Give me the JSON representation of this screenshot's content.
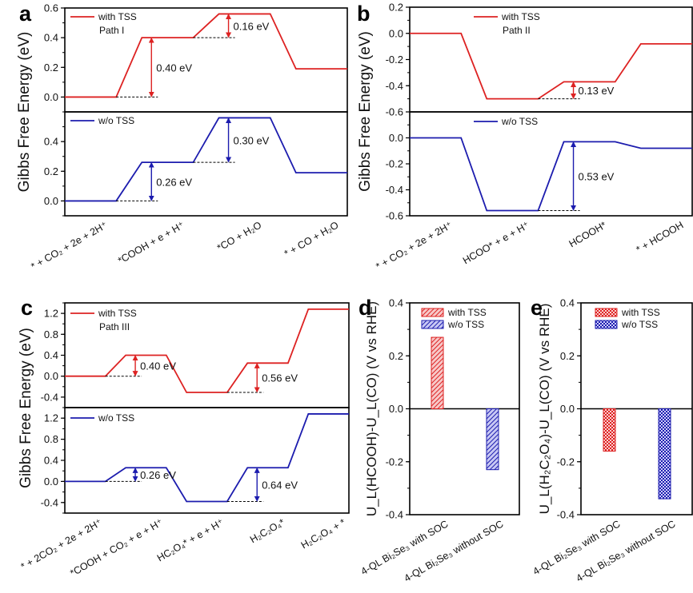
{
  "colors": {
    "with_tss": "#dd2222",
    "wo_tss": "#1c1cae"
  },
  "chart_data": [
    {
      "panel": "a",
      "type": "line",
      "ylabel": "Gibbs Free Energy (eV)",
      "categories": [
        "* + CO₂ + 2e + 2H⁺",
        "*COOH + e + H⁺",
        "*CO + H₂O",
        "* + CO + H₂O"
      ],
      "subplots": [
        {
          "legend": "with TSS",
          "path_label": "Path I",
          "series": "with_tss",
          "values": [
            0,
            0.4,
            0.56,
            0.19
          ],
          "ylim": [
            -0.1,
            0.6
          ],
          "yticks": [
            "0.0",
            "0.2",
            "0.4",
            "0.6"
          ],
          "annotations": [
            {
              "label": "0.40 eV",
              "step": 1
            },
            {
              "label": "0.16 eV",
              "step": 2
            }
          ]
        },
        {
          "legend": "w/o TSS",
          "series": "wo_tss",
          "values": [
            0,
            0.26,
            0.56,
            0.19
          ],
          "ylim": [
            -0.1,
            0.6
          ],
          "yticks": [
            "0.0",
            "0.2",
            "0.4"
          ],
          "annotations": [
            {
              "label": "0.26 eV",
              "step": 1
            },
            {
              "label": "0.30 eV",
              "step": 2
            }
          ]
        }
      ]
    },
    {
      "panel": "b",
      "type": "line",
      "ylabel": "Gibbs Free Energy (eV)",
      "categories": [
        "* + CO₂ + 2e + 2H⁺",
        "HCOO* + e + H⁺",
        "HCOOH*",
        "* + HCOOH"
      ],
      "subplots": [
        {
          "legend": "with TSS",
          "path_label": "Path II",
          "series": "with_tss",
          "values": [
            0,
            -0.5,
            -0.37,
            -0.08
          ],
          "ylim": [
            -0.6,
            0.2
          ],
          "yticks": [
            "-0.6",
            "-0.4",
            "-0.2",
            "0.0",
            "0.2"
          ],
          "annotations": [
            {
              "label": "0.13 eV",
              "step": 2
            }
          ]
        },
        {
          "legend": "w/o TSS",
          "series": "wo_tss",
          "values": [
            0,
            -0.56,
            -0.03,
            -0.08
          ],
          "ylim": [
            -0.6,
            0.2
          ],
          "yticks": [
            "-0.6",
            "-0.4",
            "-0.2",
            "0.0"
          ],
          "annotations": [
            {
              "label": "0.53 eV",
              "step": 2
            }
          ]
        }
      ]
    },
    {
      "panel": "c",
      "type": "line",
      "ylabel": "Gibbs Free Energy (eV)",
      "categories": [
        "* + 2CO₂ + 2e + 2H⁺",
        "*COOH + CO₂ + e + H⁺",
        "HC₂O₄* + e + H⁺",
        "H₂C₂O₄*",
        "H₂C₂O₄ + *"
      ],
      "subplots": [
        {
          "legend": "with TSS",
          "path_label": "Path III",
          "series": "with_tss",
          "values": [
            0,
            0.4,
            -0.31,
            0.25,
            1.28
          ],
          "ylim": [
            -0.6,
            1.4
          ],
          "yticks": [
            "-0.4",
            "0.0",
            "0.4",
            "0.8",
            "1.2"
          ],
          "annotations": [
            {
              "label": "0.40 eV",
              "step": 1
            },
            {
              "label": "0.56 eV",
              "step": 3
            }
          ]
        },
        {
          "legend": "w/o TSS",
          "series": "wo_tss",
          "values": [
            0,
            0.26,
            -0.38,
            0.26,
            1.28
          ],
          "ylim": [
            -0.6,
            1.4
          ],
          "yticks": [
            "-0.4",
            "0.0",
            "0.4",
            "0.8",
            "1.2"
          ],
          "annotations": [
            {
              "label": "0.26 eV",
              "step": 1
            },
            {
              "label": "0.64 eV",
              "step": 3
            }
          ]
        }
      ]
    },
    {
      "panel": "d",
      "type": "bar",
      "ylabel": "U_L(HCOOH)-U_L(CO) (V vs RHE)",
      "categories": [
        "4-QL  Bi₂Se₃ with SOC",
        "4-QL  Bi₂Se₃ without SOC"
      ],
      "series": [
        {
          "name": "with TSS",
          "key": "with_tss"
        },
        {
          "name": "w/o TSS",
          "key": "wo_tss"
        }
      ],
      "values": [
        0.27,
        -0.23
      ],
      "pattern": "hatched",
      "ylim": [
        -0.4,
        0.4
      ],
      "yticks": [
        "-0.4",
        "-0.2",
        "0.0",
        "0.2",
        "0.4"
      ]
    },
    {
      "panel": "e",
      "type": "bar",
      "ylabel": "U_L(H₂C₂O₄)-U_L(CO) (V vs RHE)",
      "categories": [
        "4-QL  Bi₂Se₃ with SOC",
        "4-QL  Bi₂Se₃ without SOC"
      ],
      "series": [
        {
          "name": "with TSS",
          "key": "with_tss"
        },
        {
          "name": "w/o TSS",
          "key": "wo_tss"
        }
      ],
      "values": [
        -0.16,
        -0.34
      ],
      "pattern": "checkered",
      "ylim": [
        -0.4,
        0.4
      ],
      "yticks": [
        "-0.4",
        "-0.2",
        "0.0",
        "0.2",
        "0.4"
      ]
    }
  ]
}
